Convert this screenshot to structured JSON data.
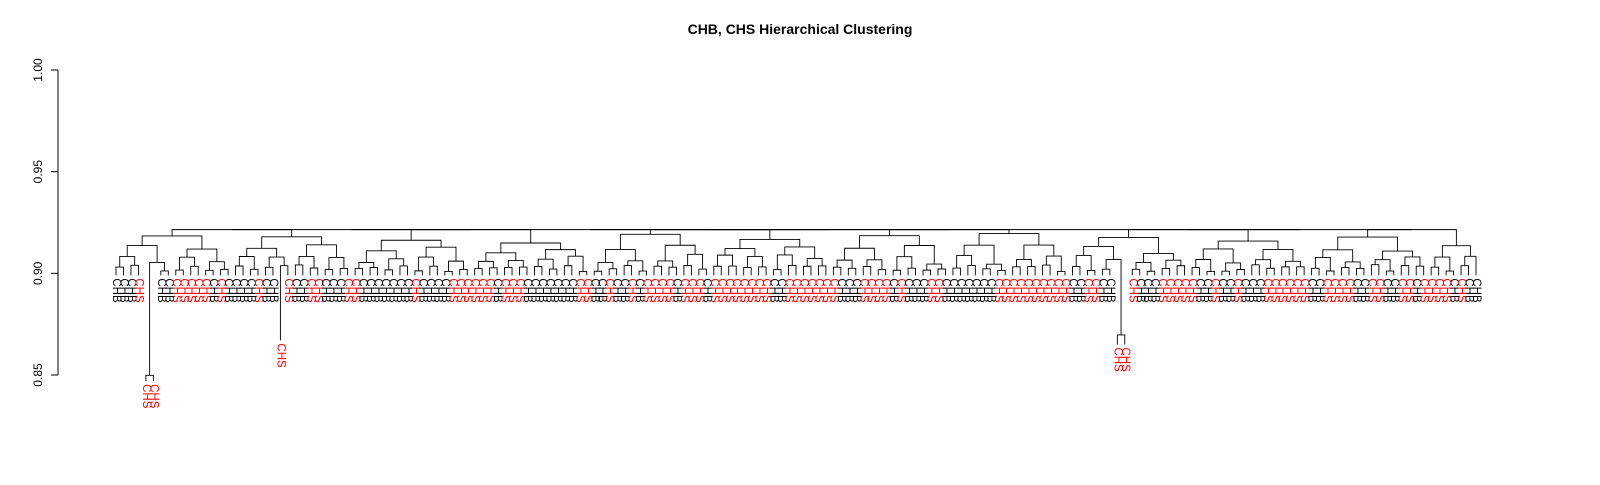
{
  "chart_data": {
    "type": "dendrogram",
    "title": "CHB, CHS Hierarchical Clustering",
    "xlabel": "",
    "ylabel": "",
    "ylim": [
      0.85,
      1.0
    ],
    "y_ticks": [
      "0.85",
      "0.90",
      "0.95",
      "1.00"
    ],
    "grid": false,
    "colors": {
      "CHB": "#000000",
      "CHS": "#ff0000",
      "branches": "#000000"
    },
    "leaves": [
      {
        "label": "CHB",
        "group": "CHB",
        "h": 0.899
      },
      {
        "label": "CHB",
        "group": "CHB",
        "h": 0.899
      },
      {
        "label": "CHB",
        "group": "CHB",
        "h": 0.899
      },
      {
        "label": "CHS",
        "group": "CHS",
        "h": 0.899
      },
      {
        "label": "CHS",
        "group": "CHS",
        "h": 0.847
      },
      {
        "label": "CHS",
        "group": "CHS",
        "h": 0.847
      },
      {
        "label": "CHB",
        "group": "CHB",
        "h": 0.899
      },
      {
        "label": "CHB",
        "group": "CHB",
        "h": 0.899
      },
      {
        "label": "CHS",
        "group": "CHS",
        "h": 0.899
      },
      {
        "label": "CHS",
        "group": "CHS",
        "h": 0.899
      },
      {
        "label": "CHS",
        "group": "CHS",
        "h": 0.899
      },
      {
        "label": "CHS",
        "group": "CHS",
        "h": 0.899
      },
      {
        "label": "CHS",
        "group": "CHS",
        "h": 0.899
      },
      {
        "label": "CHB",
        "group": "CHB",
        "h": 0.899
      },
      {
        "label": "CHS",
        "group": "CHS",
        "h": 0.899
      },
      {
        "label": "CHB",
        "group": "CHB",
        "h": 0.899
      },
      {
        "label": "CHB",
        "group": "CHB",
        "h": 0.899
      },
      {
        "label": "CHB",
        "group": "CHB",
        "h": 0.899
      },
      {
        "label": "CHB",
        "group": "CHB",
        "h": 0.899
      },
      {
        "label": "CHS",
        "group": "CHS",
        "h": 0.899
      },
      {
        "label": "CHB",
        "group": "CHB",
        "h": 0.899
      },
      {
        "label": "CHB",
        "group": "CHB",
        "h": 0.899
      },
      {
        "label": "CHS",
        "group": "CHS",
        "h": 0.867
      },
      {
        "label": "CHS",
        "group": "CHS",
        "h": 0.899
      },
      {
        "label": "CHB",
        "group": "CHB",
        "h": 0.899
      },
      {
        "label": "CHB",
        "group": "CHB",
        "h": 0.899
      },
      {
        "label": "CHS",
        "group": "CHS",
        "h": 0.899
      },
      {
        "label": "CHS",
        "group": "CHS",
        "h": 0.899
      },
      {
        "label": "CHB",
        "group": "CHB",
        "h": 0.899
      },
      {
        "label": "CHB",
        "group": "CHB",
        "h": 0.899
      },
      {
        "label": "CHB",
        "group": "CHB",
        "h": 0.899
      },
      {
        "label": "CHS",
        "group": "CHS",
        "h": 0.899
      },
      {
        "label": "CHS",
        "group": "CHS",
        "h": 0.899
      },
      {
        "label": "CHB",
        "group": "CHB",
        "h": 0.899
      },
      {
        "label": "CHB",
        "group": "CHB",
        "h": 0.899
      },
      {
        "label": "CHB",
        "group": "CHB",
        "h": 0.899
      },
      {
        "label": "CHB",
        "group": "CHB",
        "h": 0.899
      },
      {
        "label": "CHB",
        "group": "CHB",
        "h": 0.899
      },
      {
        "label": "CHB",
        "group": "CHB",
        "h": 0.899
      },
      {
        "label": "CHB",
        "group": "CHB",
        "h": 0.899
      },
      {
        "label": "CHS",
        "group": "CHS",
        "h": 0.899
      },
      {
        "label": "CHB",
        "group": "CHB",
        "h": 0.899
      },
      {
        "label": "CHB",
        "group": "CHB",
        "h": 0.899
      },
      {
        "label": "CHB",
        "group": "CHB",
        "h": 0.899
      },
      {
        "label": "CHB",
        "group": "CHB",
        "h": 0.899
      },
      {
        "label": "CHS",
        "group": "CHS",
        "h": 0.899
      },
      {
        "label": "CHS",
        "group": "CHS",
        "h": 0.899
      },
      {
        "label": "CHS",
        "group": "CHS",
        "h": 0.899
      },
      {
        "label": "CHS",
        "group": "CHS",
        "h": 0.899
      },
      {
        "label": "CHS",
        "group": "CHS",
        "h": 0.899
      },
      {
        "label": "CHS",
        "group": "CHS",
        "h": 0.899
      },
      {
        "label": "CHB",
        "group": "CHB",
        "h": 0.899
      },
      {
        "label": "CHS",
        "group": "CHS",
        "h": 0.899
      },
      {
        "label": "CHS",
        "group": "CHS",
        "h": 0.899
      },
      {
        "label": "CHS",
        "group": "CHS",
        "h": 0.899
      },
      {
        "label": "CHB",
        "group": "CHB",
        "h": 0.899
      },
      {
        "label": "CHB",
        "group": "CHB",
        "h": 0.899
      },
      {
        "label": "CHB",
        "group": "CHB",
        "h": 0.899
      },
      {
        "label": "CHB",
        "group": "CHB",
        "h": 0.899
      },
      {
        "label": "CHB",
        "group": "CHB",
        "h": 0.899
      },
      {
        "label": "CHB",
        "group": "CHB",
        "h": 0.899
      },
      {
        "label": "CHB",
        "group": "CHB",
        "h": 0.899
      },
      {
        "label": "CHS",
        "group": "CHS",
        "h": 0.899
      },
      {
        "label": "CHS",
        "group": "CHS",
        "h": 0.899
      },
      {
        "label": "CHB",
        "group": "CHB",
        "h": 0.899
      },
      {
        "label": "CHB",
        "group": "CHB",
        "h": 0.899
      },
      {
        "label": "CHS",
        "group": "CHS",
        "h": 0.899
      },
      {
        "label": "CHB",
        "group": "CHB",
        "h": 0.899
      },
      {
        "label": "CHB",
        "group": "CHB",
        "h": 0.899
      },
      {
        "label": "CHS",
        "group": "CHS",
        "h": 0.899
      },
      {
        "label": "CHB",
        "group": "CHB",
        "h": 0.899
      },
      {
        "label": "CHS",
        "group": "CHS",
        "h": 0.899
      },
      {
        "label": "CHS",
        "group": "CHS",
        "h": 0.899
      },
      {
        "label": "CHS",
        "group": "CHS",
        "h": 0.899
      },
      {
        "label": "CHS",
        "group": "CHS",
        "h": 0.899
      },
      {
        "label": "CHB",
        "group": "CHB",
        "h": 0.899
      },
      {
        "label": "CHS",
        "group": "CHS",
        "h": 0.899
      },
      {
        "label": "CHS",
        "group": "CHS",
        "h": 0.899
      },
      {
        "label": "CHS",
        "group": "CHS",
        "h": 0.899
      },
      {
        "label": "CHB",
        "group": "CHB",
        "h": 0.899
      },
      {
        "label": "CHS",
        "group": "CHS",
        "h": 0.899
      },
      {
        "label": "CHS",
        "group": "CHS",
        "h": 0.899
      },
      {
        "label": "CHS",
        "group": "CHS",
        "h": 0.899
      },
      {
        "label": "CHS",
        "group": "CHS",
        "h": 0.899
      },
      {
        "label": "CHS",
        "group": "CHS",
        "h": 0.899
      },
      {
        "label": "CHS",
        "group": "CHS",
        "h": 0.899
      },
      {
        "label": "CHS",
        "group": "CHS",
        "h": 0.899
      },
      {
        "label": "CHS",
        "group": "CHS",
        "h": 0.899
      },
      {
        "label": "CHB",
        "group": "CHB",
        "h": 0.899
      },
      {
        "label": "CHB",
        "group": "CHB",
        "h": 0.899
      },
      {
        "label": "CHS",
        "group": "CHS",
        "h": 0.899
      },
      {
        "label": "CHS",
        "group": "CHS",
        "h": 0.899
      },
      {
        "label": "CHS",
        "group": "CHS",
        "h": 0.899
      },
      {
        "label": "CHS",
        "group": "CHS",
        "h": 0.899
      },
      {
        "label": "CHS",
        "group": "CHS",
        "h": 0.899
      },
      {
        "label": "CHS",
        "group": "CHS",
        "h": 0.899
      },
      {
        "label": "CHS",
        "group": "CHS",
        "h": 0.899
      },
      {
        "label": "CHB",
        "group": "CHB",
        "h": 0.899
      },
      {
        "label": "CHB",
        "group": "CHB",
        "h": 0.899
      },
      {
        "label": "CHB",
        "group": "CHB",
        "h": 0.899
      },
      {
        "label": "CHS",
        "group": "CHS",
        "h": 0.899
      },
      {
        "label": "CHS",
        "group": "CHS",
        "h": 0.899
      },
      {
        "label": "CHS",
        "group": "CHS",
        "h": 0.899
      },
      {
        "label": "CHS",
        "group": "CHS",
        "h": 0.899
      },
      {
        "label": "CHB",
        "group": "CHB",
        "h": 0.899
      },
      {
        "label": "CHS",
        "group": "CHS",
        "h": 0.899
      },
      {
        "label": "CHB",
        "group": "CHB",
        "h": 0.899
      },
      {
        "label": "CHB",
        "group": "CHB",
        "h": 0.899
      },
      {
        "label": "CHB",
        "group": "CHB",
        "h": 0.899
      },
      {
        "label": "CHS",
        "group": "CHS",
        "h": 0.899
      },
      {
        "label": "CHS",
        "group": "CHS",
        "h": 0.899
      },
      {
        "label": "CHB",
        "group": "CHB",
        "h": 0.899
      },
      {
        "label": "CHB",
        "group": "CHB",
        "h": 0.899
      },
      {
        "label": "CHB",
        "group": "CHB",
        "h": 0.899
      },
      {
        "label": "CHB",
        "group": "CHB",
        "h": 0.899
      },
      {
        "label": "CHB",
        "group": "CHB",
        "h": 0.899
      },
      {
        "label": "CHB",
        "group": "CHB",
        "h": 0.899
      },
      {
        "label": "CHB",
        "group": "CHB",
        "h": 0.899
      },
      {
        "label": "CHS",
        "group": "CHS",
        "h": 0.899
      },
      {
        "label": "CHS",
        "group": "CHS",
        "h": 0.899
      },
      {
        "label": "CHS",
        "group": "CHS",
        "h": 0.899
      },
      {
        "label": "CHS",
        "group": "CHS",
        "h": 0.899
      },
      {
        "label": "CHS",
        "group": "CHS",
        "h": 0.899
      },
      {
        "label": "CHS",
        "group": "CHS",
        "h": 0.899
      },
      {
        "label": "CHS",
        "group": "CHS",
        "h": 0.899
      },
      {
        "label": "CHS",
        "group": "CHS",
        "h": 0.899
      },
      {
        "label": "CHS",
        "group": "CHS",
        "h": 0.899
      },
      {
        "label": "CHS",
        "group": "CHS",
        "h": 0.899
      },
      {
        "label": "CHB",
        "group": "CHB",
        "h": 0.899
      },
      {
        "label": "CHB",
        "group": "CHB",
        "h": 0.899
      },
      {
        "label": "CHS",
        "group": "CHS",
        "h": 0.899
      },
      {
        "label": "CHS",
        "group": "CHS",
        "h": 0.899
      },
      {
        "label": "CHB",
        "group": "CHB",
        "h": 0.899
      },
      {
        "label": "CHB",
        "group": "CHB",
        "h": 0.899
      },
      {
        "label": "CHS",
        "group": "CHS",
        "h": 0.865
      },
      {
        "label": "CHS",
        "group": "CHS",
        "h": 0.865
      },
      {
        "label": "CHS",
        "group": "CHS",
        "h": 0.899
      },
      {
        "label": "CHB",
        "group": "CHB",
        "h": 0.899
      },
      {
        "label": "CHB",
        "group": "CHB",
        "h": 0.899
      },
      {
        "label": "CHB",
        "group": "CHB",
        "h": 0.899
      },
      {
        "label": "CHS",
        "group": "CHS",
        "h": 0.899
      },
      {
        "label": "CHS",
        "group": "CHS",
        "h": 0.899
      },
      {
        "label": "CHS",
        "group": "CHS",
        "h": 0.899
      },
      {
        "label": "CHS",
        "group": "CHS",
        "h": 0.899
      },
      {
        "label": "CHS",
        "group": "CHS",
        "h": 0.899
      },
      {
        "label": "CHB",
        "group": "CHB",
        "h": 0.899
      },
      {
        "label": "CHB",
        "group": "CHB",
        "h": 0.899
      },
      {
        "label": "CHS",
        "group": "CHS",
        "h": 0.899
      },
      {
        "label": "CHB",
        "group": "CHB",
        "h": 0.899
      },
      {
        "label": "CHB",
        "group": "CHB",
        "h": 0.899
      },
      {
        "label": "CHS",
        "group": "CHS",
        "h": 0.899
      },
      {
        "label": "CHB",
        "group": "CHB",
        "h": 0.899
      },
      {
        "label": "CHB",
        "group": "CHB",
        "h": 0.899
      },
      {
        "label": "CHB",
        "group": "CHB",
        "h": 0.899
      },
      {
        "label": "CHS",
        "group": "CHS",
        "h": 0.899
      },
      {
        "label": "CHS",
        "group": "CHS",
        "h": 0.899
      },
      {
        "label": "CHS",
        "group": "CHS",
        "h": 0.899
      },
      {
        "label": "CHS",
        "group": "CHS",
        "h": 0.899
      },
      {
        "label": "CHS",
        "group": "CHS",
        "h": 0.899
      },
      {
        "label": "CHS",
        "group": "CHS",
        "h": 0.899
      },
      {
        "label": "CHB",
        "group": "CHB",
        "h": 0.899
      },
      {
        "label": "CHB",
        "group": "CHB",
        "h": 0.899
      },
      {
        "label": "CHS",
        "group": "CHS",
        "h": 0.899
      },
      {
        "label": "CHS",
        "group": "CHS",
        "h": 0.899
      },
      {
        "label": "CHS",
        "group": "CHS",
        "h": 0.899
      },
      {
        "label": "CHS",
        "group": "CHS",
        "h": 0.899
      },
      {
        "label": "CHB",
        "group": "CHB",
        "h": 0.899
      },
      {
        "label": "CHB",
        "group": "CHB",
        "h": 0.899
      },
      {
        "label": "CHS",
        "group": "CHS",
        "h": 0.899
      },
      {
        "label": "CHS",
        "group": "CHS",
        "h": 0.899
      },
      {
        "label": "CHB",
        "group": "CHB",
        "h": 0.899
      },
      {
        "label": "CHB",
        "group": "CHB",
        "h": 0.899
      },
      {
        "label": "CHS",
        "group": "CHS",
        "h": 0.899
      },
      {
        "label": "CHS",
        "group": "CHS",
        "h": 0.899
      },
      {
        "label": "CHB",
        "group": "CHB",
        "h": 0.899
      },
      {
        "label": "CHS",
        "group": "CHS",
        "h": 0.899
      },
      {
        "label": "CHS",
        "group": "CHS",
        "h": 0.899
      },
      {
        "label": "CHS",
        "group": "CHS",
        "h": 0.899
      },
      {
        "label": "CHS",
        "group": "CHS",
        "h": 0.899
      },
      {
        "label": "CHB",
        "group": "CHB",
        "h": 0.899
      },
      {
        "label": "CHS",
        "group": "CHS",
        "h": 0.899
      },
      {
        "label": "CHB",
        "group": "CHB",
        "h": 0.899
      },
      {
        "label": "CHB",
        "group": "CHB",
        "h": 0.899
      }
    ]
  }
}
